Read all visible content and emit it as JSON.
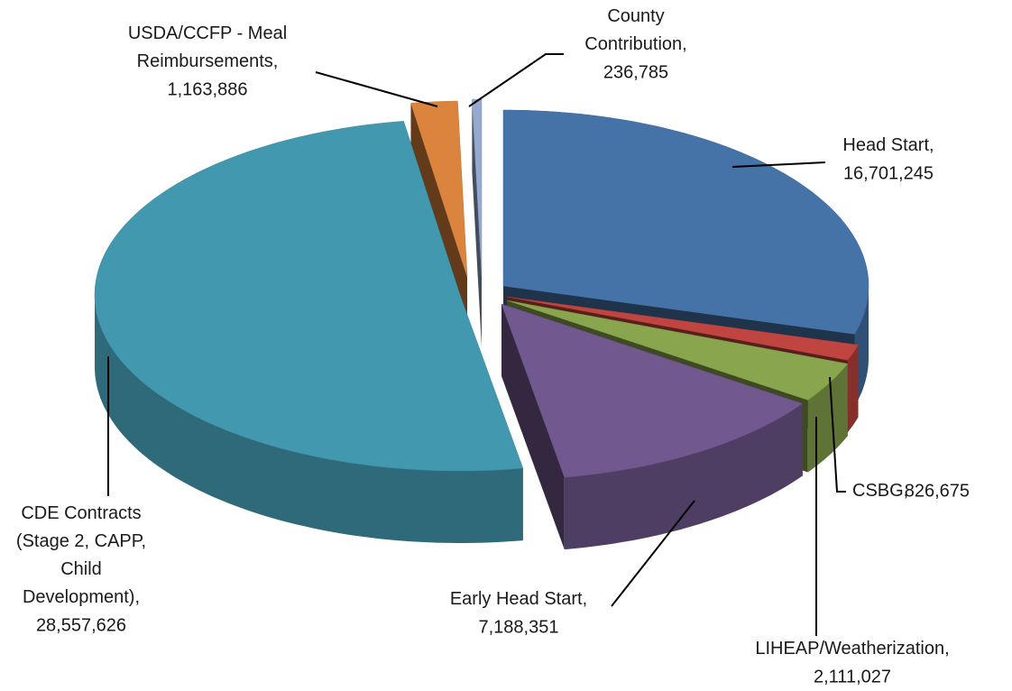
{
  "chart_data": {
    "type": "pie",
    "categories": [
      "Head Start,",
      "CSBG,",
      "LIHEAP/Weatherization,",
      "Early Head Start,",
      "CDE Contracts\n(Stage 2, CAPP,\nChild\nDevelopment),",
      "USDA/CCFP - Meal\nReimbursements,",
      "County\nContribution,"
    ],
    "values": [
      16701245,
      826675,
      2111027,
      7188351,
      28557626,
      1163886,
      236785
    ],
    "value_labels": [
      "16,701,245",
      "826,675",
      "2,111,027",
      "7,188,351",
      "28,557,626",
      "1,163,886",
      "236,785"
    ],
    "colors": [
      "#4572a7",
      "#c0443f",
      "#89a54e",
      "#71588f",
      "#4198af",
      "#db843d",
      "#93a9cf"
    ]
  }
}
